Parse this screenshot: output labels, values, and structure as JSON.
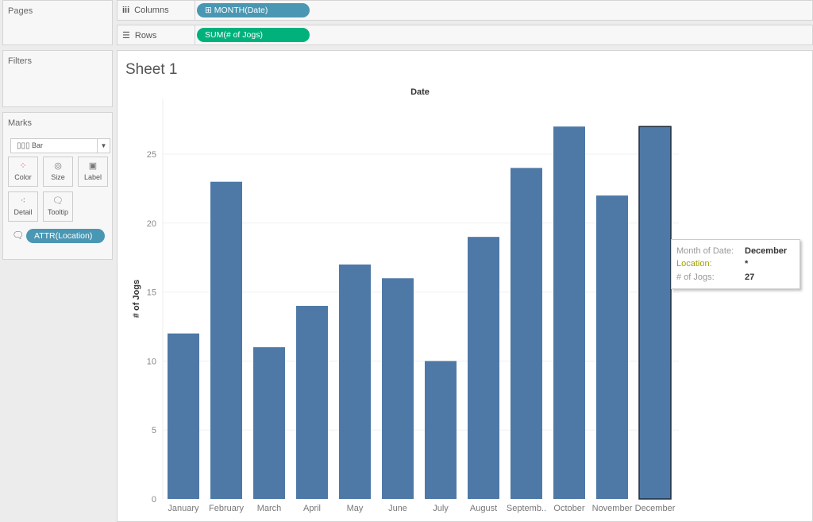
{
  "panels": {
    "pages": "Pages",
    "filters": "Filters",
    "marks": "Marks"
  },
  "marks": {
    "type": "Bar",
    "buttons": [
      "Color",
      "Size",
      "Label",
      "Detail",
      "Tooltip"
    ],
    "tooltip_pill": "ATTR(Location)"
  },
  "shelves": {
    "columns_label": "Columns",
    "columns_pill": "MONTH(Date)",
    "rows_label": "Rows",
    "rows_pill": "SUM(# of Jogs)"
  },
  "colors": {
    "bar": "#4e79a7",
    "columns_pill": "#4a97b3",
    "rows_pill": "#00b17b",
    "highlight": "#f9f21a"
  },
  "sheet_title": "Sheet 1",
  "tooltip": {
    "rows": [
      {
        "key": "Month of Date:",
        "value": "December"
      },
      {
        "key": "Location:",
        "value": "*"
      },
      {
        "key": "# of Jogs:",
        "value": "27"
      }
    ]
  },
  "chart_data": {
    "type": "bar",
    "title": "Date",
    "xlabel": "",
    "ylabel": "# of Jogs",
    "categories": [
      "January",
      "February",
      "March",
      "April",
      "May",
      "June",
      "July",
      "August",
      "Septemb..",
      "October",
      "November",
      "December"
    ],
    "values": [
      12,
      23,
      11,
      14,
      17,
      16,
      10,
      19,
      24,
      27,
      22,
      27
    ],
    "ylim": [
      0,
      28
    ],
    "yticks": [
      0,
      5,
      10,
      15,
      20,
      25
    ],
    "grid": true,
    "selected": "December"
  }
}
